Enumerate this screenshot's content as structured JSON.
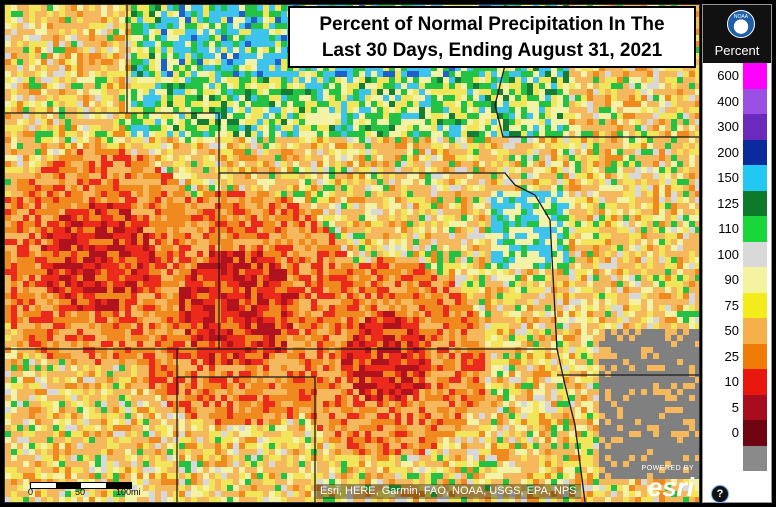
{
  "title": {
    "line1": "Percent of Normal Precipitation In The",
    "line2": "Last 30 Days, Ending August 31, 2021"
  },
  "legend": {
    "title": "Percent",
    "help_icon": "question-mark-icon",
    "logo_icon": "noaa-logo-icon",
    "items": [
      {
        "label": "600",
        "color": "#ff00ff"
      },
      {
        "label": "400",
        "color": "#9b4fe3"
      },
      {
        "label": "300",
        "color": "#6a2bbd"
      },
      {
        "label": "200",
        "color": "#0b2b9c"
      },
      {
        "label": "150",
        "color": "#22c7f2"
      },
      {
        "label": "125",
        "color": "#0c7a2a"
      },
      {
        "label": "110",
        "color": "#19d63b"
      },
      {
        "label": "100",
        "color": "#d9d9d9"
      },
      {
        "label": "90",
        "color": "#f3f3a0"
      },
      {
        "label": "75",
        "color": "#f3ec1b"
      },
      {
        "label": "50",
        "color": "#f5b049"
      },
      {
        "label": "25",
        "color": "#f07b07"
      },
      {
        "label": "10",
        "color": "#e8180f"
      },
      {
        "label": "5",
        "color": "#a80d1f"
      },
      {
        "label": "0",
        "color": "#6e0510"
      },
      {
        "label": "",
        "color": "#8a8a8a"
      }
    ]
  },
  "attribution": "Esri, HERE, Garmin, FAO, NOAA, USGS, EPA, NPS",
  "scalebar": {
    "left_label": "0",
    "mid_label": "50",
    "right_label": "100mi"
  },
  "esri_logo": {
    "small": "POWERED BY",
    "big": "esri"
  },
  "colors": {
    "no_data": "#808080",
    "state_border": "#1a1a1a"
  }
}
